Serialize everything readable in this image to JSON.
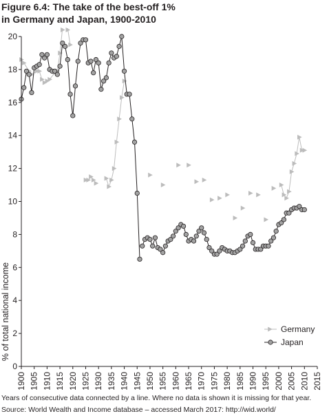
{
  "figure": {
    "title_line1": "Figure 6.4: The take of the best-off 1%",
    "title_line2": "in Germany and Japan, 1900-2010",
    "note": "Years of consecutive data connected by a line. Where no data is shown it is missing for that year.",
    "source": "Source: World Wealth and Income database – accessed March 2017: http://wid.world/"
  },
  "chart_data": {
    "type": "line",
    "title": "Figure 6.4: The take of the best-off 1% in Germany and Japan, 1900-2010",
    "xlabel": "",
    "ylabel": "% of total national income",
    "xlim": [
      1900,
      2015
    ],
    "ylim": [
      0,
      20
    ],
    "x_ticks": [
      1900,
      1905,
      1910,
      1915,
      1920,
      1925,
      1930,
      1935,
      1940,
      1945,
      1950,
      1955,
      1960,
      1965,
      1970,
      1975,
      1980,
      1985,
      1990,
      1995,
      2000,
      2005,
      2010,
      2015
    ],
    "y_ticks": [
      0,
      2,
      4,
      6,
      8,
      10,
      12,
      14,
      16,
      18,
      20
    ],
    "grid": false,
    "legend_position": "bottom-right",
    "series": [
      {
        "name": "Germany",
        "marker": "triangle-right",
        "color": "#bcbcbc",
        "segments": [
          [
            [
              1900,
              18.6
            ],
            [
              1901,
              18.4
            ],
            [
              1903,
              17.9
            ],
            [
              1904,
              17.7
            ],
            [
              1906,
              17.9
            ],
            [
              1907,
              17.9
            ],
            [
              1908,
              17.4
            ],
            [
              1909,
              17.2
            ],
            [
              1910,
              17.3
            ],
            [
              1911,
              17.4
            ],
            [
              1913,
              17.8
            ],
            [
              1914,
              17.9
            ],
            [
              1915,
              19.0
            ],
            [
              1916,
              20.5
            ]
          ],
          [
            [
              1918,
              20.5
            ],
            [
              1919,
              19.5
            ]
          ],
          [
            [
              1925,
              11.3
            ],
            [
              1926,
              11.3
            ],
            [
              1927,
              11.5
            ],
            [
              1928,
              11.3
            ],
            [
              1929,
              11.1
            ]
          ],
          [
            [
              1933,
              11.4
            ],
            [
              1934,
              10.9
            ],
            [
              1935,
              11.3
            ],
            [
              1936,
              12.0
            ],
            [
              1937,
              13.6
            ],
            [
              1938,
              15.0
            ],
            [
              1939,
              16.3
            ],
            [
              1940,
              17.3
            ]
          ],
          [
            [
              1950,
              11.6
            ]
          ],
          [
            [
              1955,
              11.0
            ]
          ],
          [
            [
              1961,
              12.2
            ]
          ],
          [
            [
              1965,
              12.2
            ]
          ],
          [
            [
              1968,
              11.2
            ]
          ],
          [
            [
              1971,
              11.3
            ]
          ],
          [
            [
              1974,
              10.1
            ]
          ],
          [
            [
              1977,
              10.2
            ]
          ],
          [
            [
              1980,
              10.4
            ]
          ],
          [
            [
              1983,
              9.0
            ]
          ],
          [
            [
              1986,
              9.6
            ]
          ],
          [
            [
              1989,
              10.5
            ]
          ],
          [
            [
              1992,
              10.4
            ]
          ],
          [
            [
              1995,
              8.9
            ]
          ],
          [
            [
              1998,
              10.8
            ]
          ],
          [
            [
              2001,
              11.0
            ],
            [
              2002,
              10.4
            ],
            [
              2003,
              10.2
            ],
            [
              2004,
              10.6
            ],
            [
              2005,
              11.8
            ],
            [
              2006,
              12.3
            ],
            [
              2007,
              12.9
            ],
            [
              2008,
              13.9
            ],
            [
              2009,
              13.1
            ],
            [
              2010,
              13.1
            ]
          ]
        ]
      },
      {
        "name": "Japan",
        "marker": "circle",
        "color": "#9a9a9a",
        "segments": [
          [
            [
              1900,
              16.2
            ],
            [
              1901,
              16.9
            ],
            [
              1902,
              17.9
            ],
            [
              1903,
              17.7
            ],
            [
              1904,
              16.6
            ],
            [
              1905,
              18.1
            ],
            [
              1906,
              18.2
            ],
            [
              1907,
              18.3
            ],
            [
              1908,
              18.9
            ],
            [
              1909,
              18.7
            ],
            [
              1910,
              18.9
            ],
            [
              1911,
              18.0
            ],
            [
              1912,
              17.9
            ],
            [
              1913,
              17.9
            ],
            [
              1914,
              17.7
            ],
            [
              1915,
              18.2
            ],
            [
              1916,
              19.6
            ],
            [
              1917,
              19.4
            ],
            [
              1918,
              18.6
            ],
            [
              1919,
              16.5
            ],
            [
              1920,
              15.2
            ],
            [
              1921,
              17.0
            ],
            [
              1922,
              18.5
            ],
            [
              1923,
              19.6
            ],
            [
              1924,
              19.8
            ],
            [
              1925,
              19.8
            ],
            [
              1926,
              18.4
            ],
            [
              1927,
              18.5
            ],
            [
              1928,
              17.8
            ],
            [
              1929,
              18.6
            ],
            [
              1930,
              18.4
            ],
            [
              1931,
              16.8
            ],
            [
              1932,
              17.3
            ],
            [
              1933,
              17.5
            ],
            [
              1934,
              18.4
            ],
            [
              1935,
              19.0
            ],
            [
              1936,
              18.7
            ],
            [
              1937,
              18.8
            ],
            [
              1938,
              19.4
            ],
            [
              1939,
              20.0
            ],
            [
              1940,
              17.9
            ],
            [
              1941,
              16.5
            ],
            [
              1942,
              16.5
            ],
            [
              1943,
              15.0
            ],
            [
              1944,
              13.6
            ],
            [
              1945,
              10.5
            ],
            [
              1946,
              6.5
            ]
          ],
          [
            [
              1947,
              7.3
            ],
            [
              1948,
              7.7
            ],
            [
              1949,
              7.8
            ],
            [
              1950,
              7.7
            ],
            [
              1951,
              7.3
            ],
            [
              1952,
              7.8
            ],
            [
              1953,
              7.2
            ],
            [
              1954,
              7.1
            ],
            [
              1955,
              6.9
            ],
            [
              1956,
              7.3
            ],
            [
              1957,
              7.6
            ],
            [
              1958,
              7.7
            ],
            [
              1959,
              7.9
            ],
            [
              1960,
              8.2
            ],
            [
              1961,
              8.4
            ],
            [
              1962,
              8.6
            ],
            [
              1963,
              8.5
            ],
            [
              1964,
              8.0
            ],
            [
              1965,
              7.6
            ],
            [
              1966,
              7.7
            ],
            [
              1967,
              7.6
            ],
            [
              1968,
              7.9
            ],
            [
              1969,
              8.2
            ],
            [
              1970,
              8.4
            ],
            [
              1971,
              8.1
            ],
            [
              1972,
              7.7
            ],
            [
              1973,
              7.2
            ],
            [
              1974,
              7.0
            ],
            [
              1975,
              6.8
            ],
            [
              1976,
              6.8
            ],
            [
              1977,
              7.0
            ],
            [
              1978,
              7.2
            ],
            [
              1979,
              7.1
            ],
            [
              1980,
              7.0
            ],
            [
              1981,
              7.0
            ],
            [
              1982,
              6.9
            ],
            [
              1983,
              6.9
            ],
            [
              1984,
              7.0
            ],
            [
              1985,
              7.1
            ],
            [
              1986,
              7.3
            ],
            [
              1987,
              7.6
            ],
            [
              1988,
              7.9
            ],
            [
              1989,
              8.0
            ],
            [
              1990,
              7.5
            ],
            [
              1991,
              7.1
            ],
            [
              1992,
              7.1
            ],
            [
              1993,
              7.1
            ],
            [
              1994,
              7.3
            ],
            [
              1995,
              7.3
            ],
            [
              1996,
              7.3
            ],
            [
              1997,
              7.6
            ],
            [
              1998,
              7.8
            ],
            [
              1999,
              8.2
            ],
            [
              2000,
              8.6
            ],
            [
              2001,
              8.7
            ],
            [
              2002,
              8.9
            ],
            [
              2003,
              9.3
            ],
            [
              2004,
              9.3
            ],
            [
              2005,
              9.5
            ],
            [
              2006,
              9.6
            ],
            [
              2007,
              9.6
            ],
            [
              2008,
              9.7
            ],
            [
              2009,
              9.5
            ],
            [
              2010,
              9.5
            ]
          ]
        ]
      }
    ]
  }
}
